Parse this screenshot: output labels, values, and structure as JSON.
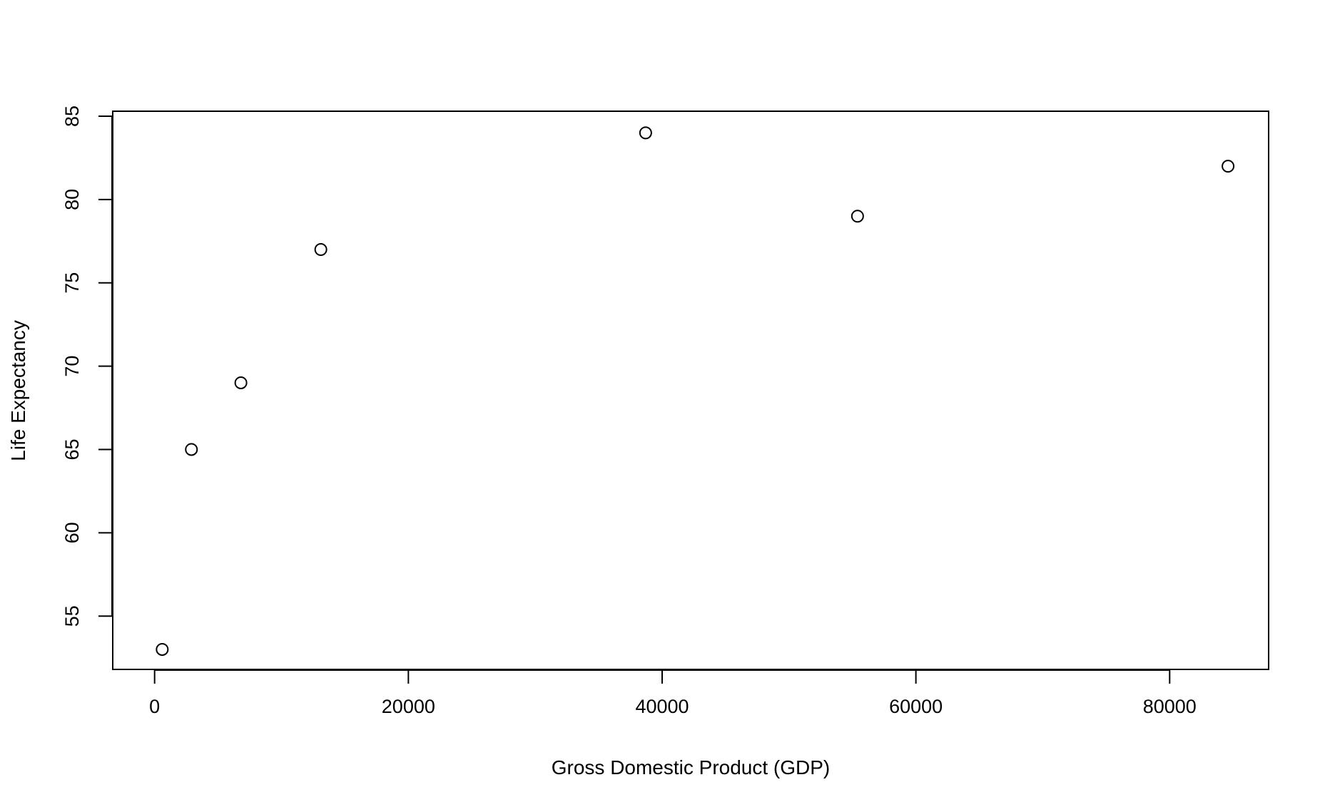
{
  "chart_data": {
    "type": "scatter",
    "title": "",
    "xlabel": "Gross Domestic Product (GDP)",
    "ylabel": "Life Expectancy",
    "xlim": [
      -3300,
      87800
    ],
    "ylim": [
      51.8,
      85.3
    ],
    "xticks": [
      0,
      20000,
      40000,
      60000,
      80000
    ],
    "yticks": [
      55,
      60,
      65,
      70,
      75,
      80,
      85
    ],
    "grid": false,
    "legend": "none",
    "marker": "open-circle",
    "points": [
      {
        "x": 600,
        "y": 53
      },
      {
        "x": 2900,
        "y": 65
      },
      {
        "x": 6800,
        "y": 69
      },
      {
        "x": 13100,
        "y": 77
      },
      {
        "x": 38700,
        "y": 84
      },
      {
        "x": 55400,
        "y": 79
      },
      {
        "x": 84600,
        "y": 82
      }
    ]
  }
}
